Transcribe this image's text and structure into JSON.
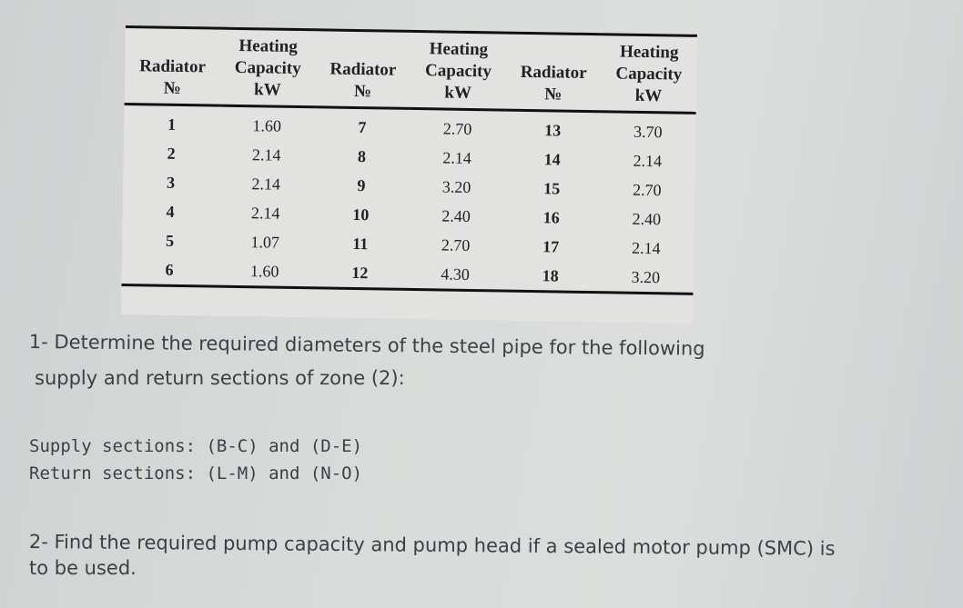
{
  "table": {
    "headers": [
      {
        "line1": "",
        "line2": "Radiator",
        "line3": "№"
      },
      {
        "line1": "Heating",
        "line2": "Capacity",
        "line3": "kW"
      },
      {
        "line1": "",
        "line2": "Radiator",
        "line3": "№"
      },
      {
        "line1": "Heating",
        "line2": "Capacity",
        "line3": "kW"
      },
      {
        "line1": "",
        "line2": "Radiator",
        "line3": "№"
      },
      {
        "line1": "Heating",
        "line2": "Capacity",
        "line3": "kW"
      }
    ],
    "rows": [
      [
        "1",
        "1.60",
        "7",
        "2.70",
        "13",
        "3.70"
      ],
      [
        "2",
        "2.14",
        "8",
        "2.14",
        "14",
        "2.14"
      ],
      [
        "3",
        "2.14",
        "9",
        "3.20",
        "15",
        "2.70"
      ],
      [
        "4",
        "2.14",
        "10",
        "2.40",
        "16",
        "2.40"
      ],
      [
        "5",
        "1.07",
        "11",
        "2.70",
        "17",
        "2.14"
      ],
      [
        "6",
        "1.60",
        "12",
        "4.30",
        "18",
        "3.20"
      ]
    ]
  },
  "question1": {
    "line1": "1- Determine the required diameters of the steel pipe for the following",
    "line2": "supply and return sections of zone (2):"
  },
  "sections": {
    "supply": "Supply sections: (B-C) and (D-E)",
    "return": "Return sections: (L-M) and (N-O)"
  },
  "question2": {
    "line1": "2- Find the required pump capacity and pump head if a sealed motor pump (SMC) is",
    "line2": "to be used."
  }
}
